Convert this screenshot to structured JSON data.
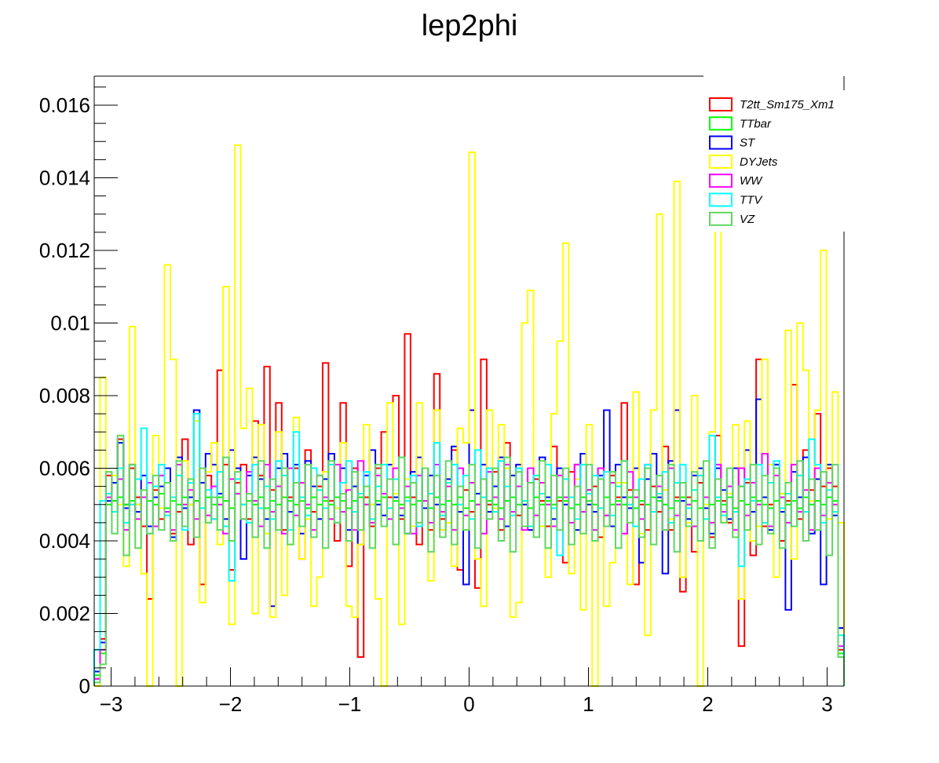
{
  "chart_data": {
    "type": "histogram-step",
    "title": "lep2phi",
    "xlabel": "",
    "ylabel": "",
    "xlim": [
      -3.1416,
      3.1416
    ],
    "ylim": [
      0,
      0.0168
    ],
    "xticks": [
      -3,
      -2,
      -1,
      0,
      1,
      2,
      3
    ],
    "xtick_labels": [
      "−3",
      "−2",
      "−1",
      "0",
      "1",
      "2",
      "3"
    ],
    "yticks": [
      0,
      0.002,
      0.004,
      0.006,
      0.008,
      0.01,
      0.012,
      0.014,
      0.016
    ],
    "ytick_labels": [
      "0",
      "0.002",
      "0.004",
      "0.006",
      "0.008",
      "0.01",
      "0.012",
      "0.014",
      "0.016"
    ],
    "bins": 128,
    "legend_position": "top-right",
    "series": [
      {
        "name": "T2tt_Sm175_Xm1",
        "color": "#ff0000",
        "values": [
          0.0002,
          0.0013,
          0.0058,
          0.0051,
          0.0068,
          0.005,
          0.006,
          0.0052,
          0.0044,
          0.0024,
          0.0054,
          0.0046,
          0.006,
          0.0042,
          0.0048,
          0.0068,
          0.0039,
          0.0051,
          0.0028,
          0.0058,
          0.0046,
          0.0087,
          0.0061,
          0.0032,
          0.0056,
          0.0061,
          0.0046,
          0.0073,
          0.0058,
          0.0088,
          0.0054,
          0.0078,
          0.0043,
          0.0052,
          0.006,
          0.0035,
          0.0065,
          0.0048,
          0.0055,
          0.0089,
          0.0051,
          0.004,
          0.0078,
          0.0033,
          0.006,
          0.0008,
          0.0052,
          0.0044,
          0.006,
          0.007,
          0.0052,
          0.008,
          0.0046,
          0.0097,
          0.0052,
          0.0039,
          0.006,
          0.0043,
          0.0086,
          0.0046,
          0.0056,
          0.0065,
          0.0032,
          0.0054,
          0.0048,
          0.0027,
          0.009,
          0.005,
          0.0059,
          0.0043,
          0.0067,
          0.0052,
          0.0047,
          0.0051,
          0.0043,
          0.0057,
          0.0051,
          0.0044,
          0.0066,
          0.0051,
          0.0034,
          0.0059,
          0.0061,
          0.0048,
          0.0054,
          0.0055,
          0.0041,
          0.0047,
          0.0058,
          0.0052,
          0.0078,
          0.0054,
          0.0028,
          0.005,
          0.0043,
          0.0055,
          0.0048,
          0.0066,
          0.0043,
          0.0052,
          0.0026,
          0.0052,
          0.0037,
          0.0056,
          0.0052,
          0.0041,
          0.0069,
          0.0051,
          0.0045,
          0.006,
          0.0011,
          0.0056,
          0.0036,
          0.009,
          0.0044,
          0.005,
          0.0061,
          0.004,
          0.0051,
          0.0083,
          0.0046,
          0.0065,
          0.0054,
          0.0075,
          0.0055,
          0.006,
          0.0055,
          0.001
        ]
      },
      {
        "name": "TTbar",
        "color": "#00ff00",
        "values": [
          0.0003,
          0.0009,
          0.005,
          0.0051,
          0.0052,
          0.005,
          0.0051,
          0.005,
          0.0052,
          0.0051,
          0.005,
          0.0053,
          0.0049,
          0.0051,
          0.005,
          0.0052,
          0.005,
          0.0051,
          0.0049,
          0.0052,
          0.005,
          0.0052,
          0.0051,
          0.0049,
          0.0053,
          0.005,
          0.0051,
          0.005,
          0.0052,
          0.0049,
          0.0051,
          0.005,
          0.0052,
          0.0051,
          0.005,
          0.0051,
          0.0049,
          0.0052,
          0.005,
          0.0051,
          0.005,
          0.0052,
          0.0051,
          0.0049,
          0.0051,
          0.0052,
          0.005,
          0.005,
          0.0051,
          0.0052,
          0.0049,
          0.0051,
          0.005,
          0.0052,
          0.005,
          0.0051,
          0.0051,
          0.0049,
          0.0052,
          0.005,
          0.0051,
          0.005,
          0.0052,
          0.0049,
          0.0051,
          0.005,
          0.0052,
          0.0051,
          0.005,
          0.0049,
          0.0051,
          0.0052,
          0.005,
          0.0051,
          0.0049,
          0.0052,
          0.005,
          0.0051,
          0.005,
          0.0052,
          0.0051,
          0.0049,
          0.005,
          0.0052,
          0.0051,
          0.005,
          0.0049,
          0.0052,
          0.005,
          0.0051,
          0.005,
          0.0052,
          0.0049,
          0.0051,
          0.005,
          0.0052,
          0.0051,
          0.005,
          0.0049,
          0.0051,
          0.0052,
          0.005,
          0.0051,
          0.0049,
          0.0052,
          0.005,
          0.0051,
          0.005,
          0.0052,
          0.0049,
          0.0051,
          0.005,
          0.0052,
          0.0051,
          0.005,
          0.0049,
          0.0051,
          0.0052,
          0.005,
          0.0051,
          0.0049,
          0.0052,
          0.005,
          0.0051,
          0.005,
          0.0052,
          0.0051,
          0.0009
        ]
      },
      {
        "name": "ST",
        "color": "#0000ff",
        "values": [
          0.0004,
          0.0012,
          0.0051,
          0.0056,
          0.0067,
          0.0049,
          0.0061,
          0.0048,
          0.0058,
          0.0044,
          0.0052,
          0.0055,
          0.006,
          0.0041,
          0.0063,
          0.0049,
          0.0052,
          0.0076,
          0.0056,
          0.0064,
          0.0061,
          0.0053,
          0.0046,
          0.0065,
          0.006,
          0.0035,
          0.0058,
          0.0063,
          0.0057,
          0.0046,
          0.0022,
          0.006,
          0.0064,
          0.0048,
          0.0061,
          0.0042,
          0.0062,
          0.0055,
          0.0046,
          0.0057,
          0.0064,
          0.0049,
          0.006,
          0.0043,
          0.0055,
          0.0039,
          0.0058,
          0.0065,
          0.005,
          0.0047,
          0.0061,
          0.0052,
          0.0047,
          0.0042,
          0.0059,
          0.0063,
          0.0049,
          0.0058,
          0.005,
          0.0043,
          0.0057,
          0.0066,
          0.0048,
          0.0028,
          0.0076,
          0.0053,
          0.0061,
          0.0048,
          0.0055,
          0.0063,
          0.0044,
          0.0058,
          0.0061,
          0.005,
          0.0043,
          0.0058,
          0.0063,
          0.0052,
          0.0046,
          0.006,
          0.005,
          0.0052,
          0.0043,
          0.0064,
          0.005,
          0.0048,
          0.0058,
          0.0076,
          0.0044,
          0.0061,
          0.0052,
          0.0049,
          0.006,
          0.0034,
          0.0057,
          0.0064,
          0.0052,
          0.0031,
          0.0062,
          0.0076,
          0.0051,
          0.0046,
          0.0058,
          0.006,
          0.0049,
          0.0042,
          0.006,
          0.0054,
          0.0046,
          0.006,
          0.0055,
          0.0065,
          0.0048,
          0.0079,
          0.0052,
          0.0043,
          0.0061,
          0.0048,
          0.0021,
          0.0059,
          0.0052,
          0.0063,
          0.0042,
          0.0057,
          0.0028,
          0.0061,
          0.0047,
          0.0016
        ]
      },
      {
        "name": "DYJets",
        "color": "#ffff00",
        "values": [
          0.0,
          0.0085,
          0.0059,
          0.0058,
          0.005,
          0.0033,
          0.0099,
          0.005,
          0.0031,
          0.0,
          0.0069,
          0.0049,
          0.0116,
          0.009,
          0.0,
          0.0062,
          0.005,
          0.0073,
          0.0023,
          0.0059,
          0.0067,
          0.0039,
          0.011,
          0.0017,
          0.0149,
          0.0071,
          0.0082,
          0.002,
          0.0072,
          0.0042,
          0.0019,
          0.007,
          0.0025,
          0.0039,
          0.0074,
          0.0035,
          0.0046,
          0.0022,
          0.003,
          0.0059,
          0.0046,
          0.0049,
          0.0067,
          0.0022,
          0.0019,
          0.0039,
          0.0072,
          0.005,
          0.0024,
          0.0,
          0.0078,
          0.0053,
          0.0017,
          0.0057,
          0.0044,
          0.0078,
          0.006,
          0.0029,
          0.0076,
          0.0043,
          0.0045,
          0.0033,
          0.0071,
          0.0067,
          0.0147,
          0.0035,
          0.0022,
          0.0076,
          0.0049,
          0.0072,
          0.006,
          0.0019,
          0.0023,
          0.01,
          0.0109,
          0.0058,
          0.0044,
          0.003,
          0.0075,
          0.0095,
          0.0122,
          0.0031,
          0.0057,
          0.0021,
          0.0072,
          0.0,
          0.006,
          0.0022,
          0.0034,
          0.0056,
          0.0056,
          0.0028,
          0.0081,
          0.0042,
          0.0014,
          0.0076,
          0.013,
          0.0054,
          0.0046,
          0.0139,
          0.003,
          0.0045,
          0.008,
          0.0,
          0.005,
          0.007,
          0.013,
          0.0045,
          0.0053,
          0.0072,
          0.0024,
          0.0073,
          0.004,
          0.0044,
          0.009,
          0.0061,
          0.003,
          0.0053,
          0.0098,
          0.0035,
          0.01,
          0.0087,
          0.0051,
          0.0076,
          0.012,
          0.0046,
          0.0081,
          0.0045
        ]
      },
      {
        "name": "WW",
        "color": "#ff00ff",
        "values": [
          0.0002,
          0.001,
          0.0052,
          0.0048,
          0.0057,
          0.0043,
          0.005,
          0.0046,
          0.0052,
          0.0056,
          0.0044,
          0.0058,
          0.0048,
          0.0043,
          0.0061,
          0.005,
          0.0054,
          0.0046,
          0.006,
          0.0047,
          0.0055,
          0.005,
          0.0042,
          0.0057,
          0.0053,
          0.0046,
          0.0059,
          0.0051,
          0.0044,
          0.0061,
          0.0048,
          0.0055,
          0.0042,
          0.006,
          0.0047,
          0.0056,
          0.005,
          0.0043,
          0.0058,
          0.0052,
          0.0046,
          0.0061,
          0.0048,
          0.0054,
          0.0043,
          0.0062,
          0.005,
          0.0045,
          0.0058,
          0.0053,
          0.0046,
          0.006,
          0.0049,
          0.0055,
          0.0042,
          0.0058,
          0.0051,
          0.0045,
          0.0061,
          0.0048,
          0.0055,
          0.0043,
          0.006,
          0.0047,
          0.0056,
          0.005,
          0.0042,
          0.0059,
          0.0052,
          0.0046,
          0.0061,
          0.0048,
          0.0055,
          0.0043,
          0.006,
          0.0047,
          0.0056,
          0.005,
          0.0044,
          0.0058,
          0.0052,
          0.0045,
          0.0061,
          0.0048,
          0.0054,
          0.0043,
          0.006,
          0.0047,
          0.0056,
          0.005,
          0.0042,
          0.0059,
          0.0052,
          0.0046,
          0.0061,
          0.0048,
          0.0055,
          0.0043,
          0.006,
          0.0047,
          0.0056,
          0.005,
          0.0044,
          0.0058,
          0.0052,
          0.0045,
          0.0061,
          0.0048,
          0.0055,
          0.0043,
          0.006,
          0.0047,
          0.0056,
          0.005,
          0.0064,
          0.0044,
          0.0058,
          0.0052,
          0.0045,
          0.0061,
          0.0048,
          0.0054,
          0.0043,
          0.006,
          0.0047,
          0.0056,
          0.005,
          0.0011
        ]
      },
      {
        "name": "TTV",
        "color": "#00ffff",
        "values": [
          0.001,
          0.0051,
          0.0053,
          0.0048,
          0.006,
          0.0045,
          0.005,
          0.0057,
          0.0071,
          0.0042,
          0.0055,
          0.0061,
          0.0047,
          0.0052,
          0.0058,
          0.0043,
          0.0056,
          0.0075,
          0.0049,
          0.0054,
          0.0046,
          0.0059,
          0.0044,
          0.0029,
          0.0057,
          0.005,
          0.0045,
          0.0061,
          0.0049,
          0.0055,
          0.0046,
          0.0062,
          0.0058,
          0.0043,
          0.007,
          0.0052,
          0.0047,
          0.006,
          0.0054,
          0.0049,
          0.0061,
          0.0045,
          0.0056,
          0.0062,
          0.0048,
          0.0053,
          0.0059,
          0.0046,
          0.0055,
          0.0061,
          0.0049,
          0.0057,
          0.0063,
          0.0051,
          0.0058,
          0.0044,
          0.006,
          0.0053,
          0.0067,
          0.0047,
          0.0056,
          0.0061,
          0.005,
          0.0058,
          0.0046,
          0.0065,
          0.0052,
          0.006,
          0.0048,
          0.0062,
          0.0055,
          0.0047,
          0.006,
          0.0051,
          0.0044,
          0.0058,
          0.0053,
          0.0061,
          0.0049,
          0.0036,
          0.0057,
          0.0052,
          0.0046,
          0.0061,
          0.0053,
          0.0058,
          0.0049,
          0.0059,
          0.0047,
          0.0055,
          0.0062,
          0.005,
          0.0044,
          0.0057,
          0.0061,
          0.0048,
          0.0053,
          0.0059,
          0.0045,
          0.0056,
          0.0061,
          0.0049,
          0.0054,
          0.0058,
          0.0046,
          0.0069,
          0.0052,
          0.0047,
          0.006,
          0.0048,
          0.0033,
          0.0057,
          0.0051,
          0.0061,
          0.0045,
          0.0056,
          0.0062,
          0.0049,
          0.0053,
          0.0044,
          0.0058,
          0.0048,
          0.0068,
          0.0061,
          0.0045,
          0.0054,
          0.0048,
          0.0014
        ]
      },
      {
        "name": "VZ",
        "color": "#5fd85f",
        "values": [
          0.0001,
          0.0006,
          0.0059,
          0.0042,
          0.0069,
          0.0036,
          0.0061,
          0.0038,
          0.0054,
          0.0042,
          0.0058,
          0.0043,
          0.0056,
          0.004,
          0.0062,
          0.0044,
          0.0057,
          0.0041,
          0.006,
          0.0045,
          0.0052,
          0.0043,
          0.0063,
          0.004,
          0.0059,
          0.0046,
          0.0053,
          0.0041,
          0.0062,
          0.0038,
          0.0057,
          0.0043,
          0.006,
          0.0039,
          0.0056,
          0.0044,
          0.0061,
          0.0041,
          0.0058,
          0.0038,
          0.0062,
          0.0045,
          0.0053,
          0.004,
          0.0059,
          0.0043,
          0.0055,
          0.0038,
          0.0061,
          0.0044,
          0.0057,
          0.0039,
          0.0063,
          0.0042,
          0.0056,
          0.0045,
          0.006,
          0.0037,
          0.0058,
          0.0041,
          0.0062,
          0.0039,
          0.0055,
          0.0043,
          0.0061,
          0.0038,
          0.0057,
          0.0046,
          0.006,
          0.004,
          0.0063,
          0.0037,
          0.0059,
          0.0044,
          0.0056,
          0.0041,
          0.0062,
          0.0038,
          0.0058,
          0.0043,
          0.006,
          0.0039,
          0.0055,
          0.0042,
          0.0061,
          0.004,
          0.0057,
          0.0044,
          0.0059,
          0.0038,
          0.0062,
          0.0045,
          0.0054,
          0.0041,
          0.006,
          0.0039,
          0.0058,
          0.0043,
          0.0061,
          0.0037,
          0.0056,
          0.0044,
          0.0059,
          0.004,
          0.0062,
          0.0038,
          0.0057,
          0.0045,
          0.006,
          0.0041,
          0.0055,
          0.0043,
          0.0061,
          0.0039,
          0.0058,
          0.0042,
          0.006,
          0.0038,
          0.0056,
          0.0044,
          0.0062,
          0.004,
          0.0057,
          0.0043,
          0.0059,
          0.0036,
          0.0061,
          0.0008
        ]
      }
    ]
  }
}
